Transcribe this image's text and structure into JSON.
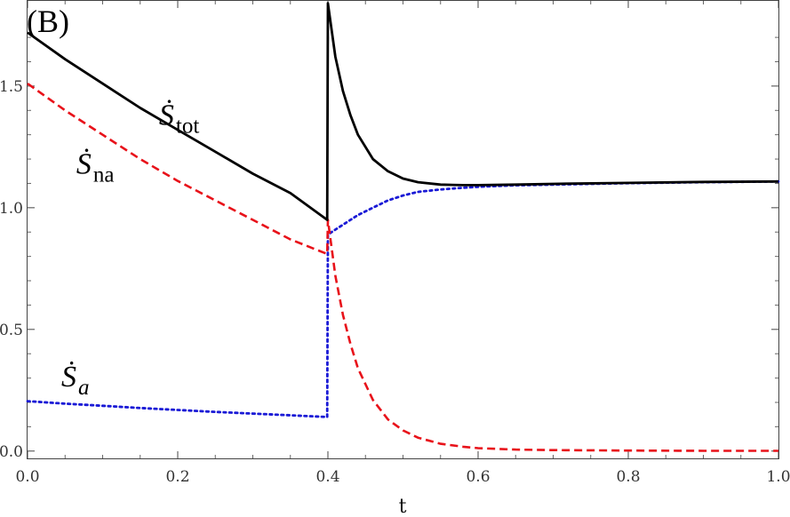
{
  "chart_data": {
    "type": "line",
    "panel_label": "(B)",
    "title": "",
    "xlabel": "t",
    "ylabel": "",
    "xlim": [
      0.0,
      1.0
    ],
    "ylim": [
      -0.03,
      1.85
    ],
    "grid": false,
    "x_ticks": [
      0.0,
      0.2,
      0.4,
      0.6,
      0.8,
      1.0
    ],
    "x_tick_labels": [
      "0.0",
      "0.2",
      "0.4",
      "0.6",
      "0.8",
      "1.0"
    ],
    "y_ticks": [
      0.0,
      0.5,
      1.0,
      1.5
    ],
    "y_tick_labels": [
      "0.0",
      "0.5",
      "1.0",
      "1.5"
    ],
    "series": [
      {
        "label_main": "Ṡ",
        "label_sub": "tot",
        "label_sub_italic": false,
        "color": "#000000",
        "style": "solid",
        "x": [
          0.0,
          0.05,
          0.1,
          0.15,
          0.2,
          0.25,
          0.3,
          0.35,
          0.399,
          0.4,
          0.41,
          0.42,
          0.43,
          0.44,
          0.46,
          0.48,
          0.5,
          0.52,
          0.55,
          0.58,
          0.6,
          0.65,
          0.7,
          0.8,
          0.9,
          1.0
        ],
        "y": [
          1.72,
          1.61,
          1.51,
          1.41,
          1.32,
          1.23,
          1.14,
          1.06,
          0.95,
          1.84,
          1.62,
          1.48,
          1.38,
          1.3,
          1.2,
          1.15,
          1.12,
          1.105,
          1.095,
          1.093,
          1.093,
          1.095,
          1.098,
          1.102,
          1.106,
          1.108
        ]
      },
      {
        "label_main": "Ṡ",
        "label_sub": "na",
        "label_sub_italic": false,
        "color": "#e8121a",
        "style": "dashed",
        "x": [
          0.0,
          0.05,
          0.1,
          0.15,
          0.2,
          0.25,
          0.3,
          0.35,
          0.399,
          0.4,
          0.41,
          0.42,
          0.43,
          0.44,
          0.46,
          0.48,
          0.5,
          0.52,
          0.55,
          0.58,
          0.6,
          0.65,
          0.7,
          0.8,
          0.9,
          1.0
        ],
        "y": [
          1.51,
          1.4,
          1.3,
          1.2,
          1.11,
          1.03,
          0.95,
          0.87,
          0.81,
          0.95,
          0.72,
          0.56,
          0.44,
          0.34,
          0.21,
          0.13,
          0.085,
          0.055,
          0.03,
          0.018,
          0.012,
          0.006,
          0.004,
          0.002,
          0.001,
          0.001
        ]
      },
      {
        "label_main": "Ṡ",
        "label_sub": "a",
        "label_sub_italic": true,
        "color": "#1a1ad6",
        "style": "dotted",
        "x": [
          0.0,
          0.05,
          0.1,
          0.15,
          0.2,
          0.25,
          0.3,
          0.35,
          0.399,
          0.4,
          0.41,
          0.42,
          0.43,
          0.44,
          0.46,
          0.48,
          0.5,
          0.52,
          0.55,
          0.58,
          0.6,
          0.65,
          0.7,
          0.8,
          0.9,
          1.0
        ],
        "y": [
          0.205,
          0.195,
          0.186,
          0.177,
          0.169,
          0.161,
          0.154,
          0.147,
          0.14,
          0.89,
          0.91,
          0.93,
          0.95,
          0.97,
          1.0,
          1.03,
          1.05,
          1.065,
          1.075,
          1.082,
          1.086,
          1.092,
          1.095,
          1.101,
          1.105,
          1.108
        ]
      }
    ]
  }
}
